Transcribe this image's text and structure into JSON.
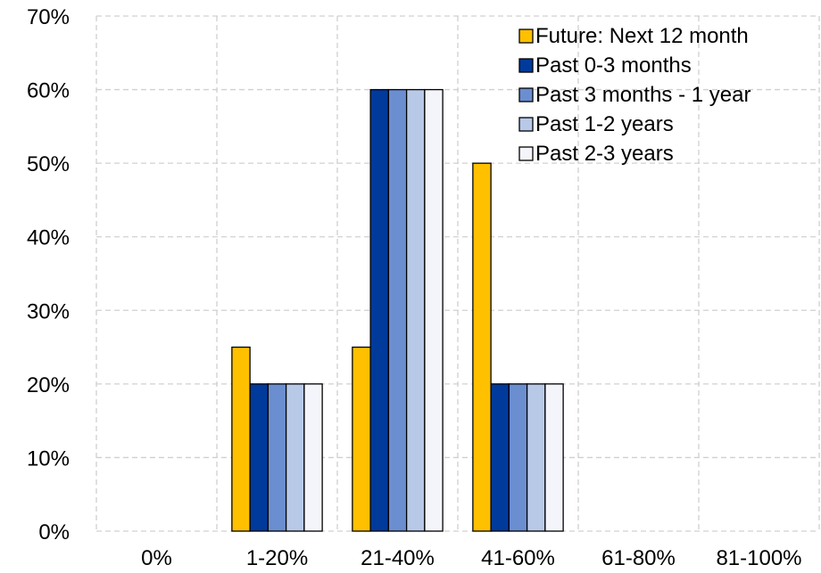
{
  "chart_data": {
    "type": "bar",
    "title": "",
    "xlabel": "",
    "ylabel": "",
    "categories": [
      "0%",
      "1-20%",
      "21-40%",
      "41-60%",
      "61-80%",
      "81-100%"
    ],
    "series": [
      {
        "name": "Future: Next 12 month",
        "color": "#FFC000",
        "values": [
          0,
          25,
          25,
          50,
          0,
          0
        ]
      },
      {
        "name": "Past 0-3 months",
        "color": "#003A9B",
        "values": [
          0,
          20,
          60,
          20,
          0,
          0
        ]
      },
      {
        "name": "Past 3 months - 1 year",
        "color": "#6B8ED0",
        "values": [
          0,
          20,
          60,
          20,
          0,
          0
        ]
      },
      {
        "name": "Past 1-2 years",
        "color": "#B8C9E8",
        "values": [
          0,
          20,
          60,
          20,
          0,
          0
        ]
      },
      {
        "name": "Past 2-3 years",
        "color": "#F4F5FB",
        "values": [
          0,
          20,
          60,
          20,
          0,
          0
        ]
      }
    ],
    "ylim": [
      0,
      70
    ],
    "yticks": [
      0,
      10,
      20,
      30,
      40,
      50,
      60,
      70
    ],
    "ytick_format": "percent",
    "grid": true,
    "legend_position": "top-right"
  }
}
